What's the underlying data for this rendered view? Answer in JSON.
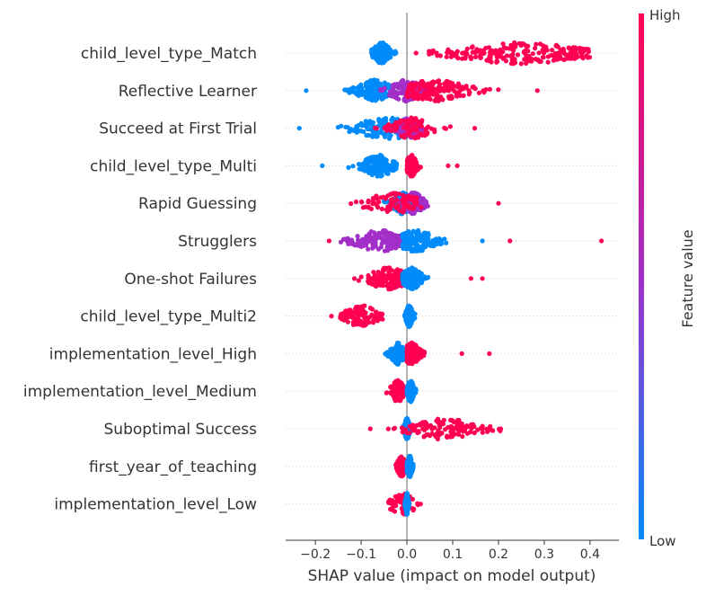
{
  "chart_data": {
    "type": "scatter",
    "subtype": "shap-beeswarm",
    "title": "",
    "xlabel": "SHAP value (impact on model output)",
    "ylabel": "",
    "xlim": [
      -0.265,
      0.463
    ],
    "x_ticks": [
      {
        "value": -0.2,
        "label": "−0.2"
      },
      {
        "value": -0.1,
        "label": "−0.1"
      },
      {
        "value": 0.0,
        "label": "0.0"
      },
      {
        "value": 0.1,
        "label": "0.1"
      },
      {
        "value": 0.2,
        "label": "0.2"
      },
      {
        "value": 0.3,
        "label": "0.3"
      },
      {
        "value": 0.4,
        "label": "0.4"
      }
    ],
    "zero_line": 0,
    "grid": "dotted horizontal row guides",
    "features": [
      {
        "label": "child_level_type_Match",
        "groups": [
          {
            "color": "#008bfb",
            "min": -0.09,
            "max": -0.02,
            "center": -0.055,
            "spread": 0.012,
            "count": 180
          },
          {
            "color": "#ff0052",
            "min": 0.04,
            "max": 0.4,
            "center": 0.25,
            "spread": 0.1,
            "count": 230
          }
        ],
        "outliers": [
          {
            "x": 0.02,
            "color": "#ff0052"
          }
        ]
      },
      {
        "label": "Reflective Learner",
        "groups": [
          {
            "color": "#008bfb",
            "min": -0.2,
            "max": -0.02,
            "center": -0.07,
            "spread": 0.025,
            "count": 170
          },
          {
            "color": "#a22fc8",
            "min": -0.06,
            "max": 0.05,
            "center": 0.0,
            "spread": 0.025,
            "count": 120
          },
          {
            "color": "#ff0052",
            "min": 0.0,
            "max": 0.28,
            "center": 0.06,
            "spread": 0.05,
            "count": 150
          }
        ],
        "outliers": [
          {
            "x": -0.22,
            "color": "#008bfb"
          },
          {
            "x": 0.285,
            "color": "#ff0052"
          }
        ]
      },
      {
        "label": "Succeed at First Trial",
        "groups": [
          {
            "color": "#008bfb",
            "min": -0.22,
            "max": 0.0,
            "center": -0.04,
            "spread": 0.05,
            "count": 150
          },
          {
            "color": "#a22fc8",
            "min": -0.03,
            "max": 0.04,
            "center": 0.005,
            "spread": 0.018,
            "count": 110
          },
          {
            "color": "#ff0052",
            "min": -0.1,
            "max": 0.15,
            "center": 0.01,
            "spread": 0.03,
            "count": 80
          }
        ],
        "outliers": [
          {
            "x": -0.235,
            "color": "#008bfb"
          },
          {
            "x": 0.148,
            "color": "#ff0052"
          }
        ]
      },
      {
        "label": "child_level_type_Multi",
        "groups": [
          {
            "color": "#008bfb",
            "min": -0.15,
            "max": -0.02,
            "center": -0.06,
            "spread": 0.025,
            "count": 160
          },
          {
            "color": "#ff0052",
            "min": 0.0,
            "max": 0.03,
            "center": 0.01,
            "spread": 0.008,
            "count": 150
          }
        ],
        "outliers": [
          {
            "x": -0.185,
            "color": "#008bfb"
          },
          {
            "x": 0.11,
            "color": "#ff0052"
          },
          {
            "x": 0.09,
            "color": "#ff0052"
          }
        ]
      },
      {
        "label": "Rapid Guessing",
        "groups": [
          {
            "color": "#008bfb",
            "min": -0.06,
            "max": 0.02,
            "center": -0.01,
            "spread": 0.015,
            "count": 100
          },
          {
            "color": "#a22fc8",
            "min": -0.02,
            "max": 0.06,
            "center": 0.015,
            "spread": 0.015,
            "count": 120
          },
          {
            "color": "#ff0052",
            "min": -0.15,
            "max": 0.13,
            "center": -0.03,
            "spread": 0.04,
            "count": 80
          }
        ],
        "outliers": [
          {
            "x": 0.2,
            "color": "#ff0052"
          }
        ]
      },
      {
        "label": "Strugglers",
        "groups": [
          {
            "color": "#a22fc8",
            "min": -0.15,
            "max": -0.01,
            "center": -0.06,
            "spread": 0.035,
            "count": 140
          },
          {
            "color": "#008bfb",
            "min": -0.01,
            "max": 0.09,
            "center": 0.02,
            "spread": 0.03,
            "count": 160
          }
        ],
        "outliers": [
          {
            "x": -0.17,
            "color": "#ff0052"
          },
          {
            "x": 0.165,
            "color": "#008bfb"
          },
          {
            "x": 0.225,
            "color": "#ff0052"
          },
          {
            "x": 0.425,
            "color": "#ff0052"
          }
        ]
      },
      {
        "label": "One-shot Failures",
        "groups": [
          {
            "color": "#ff0052",
            "min": -0.12,
            "max": -0.01,
            "center": -0.04,
            "spread": 0.03,
            "count": 140
          },
          {
            "color": "#008bfb",
            "min": -0.01,
            "max": 0.07,
            "center": 0.01,
            "spread": 0.015,
            "count": 160
          }
        ],
        "outliers": [
          {
            "x": 0.165,
            "color": "#ff0052"
          },
          {
            "x": 0.14,
            "color": "#ff0052"
          }
        ]
      },
      {
        "label": "child_level_type_Multi2",
        "groups": [
          {
            "color": "#ff0052",
            "min": -0.15,
            "max": -0.05,
            "center": -0.1,
            "spread": 0.025,
            "count": 110
          },
          {
            "color": "#008bfb",
            "min": -0.005,
            "max": 0.02,
            "center": 0.005,
            "spread": 0.005,
            "count": 200
          }
        ],
        "outliers": [
          {
            "x": -0.165,
            "color": "#ff0052"
          }
        ]
      },
      {
        "label": "implementation_level_High",
        "groups": [
          {
            "color": "#008bfb",
            "min": -0.05,
            "max": -0.005,
            "center": -0.02,
            "spread": 0.01,
            "count": 100
          },
          {
            "color": "#ff0052",
            "min": 0.0,
            "max": 0.06,
            "center": 0.01,
            "spread": 0.012,
            "count": 140
          }
        ],
        "outliers": [
          {
            "x": 0.18,
            "color": "#ff0052"
          },
          {
            "x": 0.12,
            "color": "#ff0052"
          }
        ]
      },
      {
        "label": "implementation_level_Medium",
        "groups": [
          {
            "color": "#ff0052",
            "min": -0.045,
            "max": -0.005,
            "center": -0.02,
            "spread": 0.01,
            "count": 120
          },
          {
            "color": "#008bfb",
            "min": 0.0,
            "max": 0.02,
            "center": 0.008,
            "spread": 0.005,
            "count": 150
          }
        ]
      },
      {
        "label": "Suboptimal Success",
        "groups": [
          {
            "color": "#008bfb",
            "min": -0.01,
            "max": 0.01,
            "center": 0.0,
            "spread": 0.004,
            "count": 200
          },
          {
            "color": "#ff0052",
            "min": -0.07,
            "max": 0.21,
            "center": 0.08,
            "spread": 0.05,
            "count": 120
          }
        ],
        "outliers": [
          {
            "x": -0.08,
            "color": "#ff0052"
          },
          {
            "x": 0.205,
            "color": "#ff0052"
          }
        ]
      },
      {
        "label": "first_year_of_teaching",
        "groups": [
          {
            "color": "#ff0052",
            "min": -0.025,
            "max": -0.002,
            "center": -0.012,
            "spread": 0.006,
            "count": 130
          },
          {
            "color": "#008bfb",
            "min": 0.0,
            "max": 0.015,
            "center": 0.006,
            "spread": 0.004,
            "count": 140
          }
        ]
      },
      {
        "label": "implementation_level_Low",
        "groups": [
          {
            "color": "#ff0052",
            "min": -0.045,
            "max": 0.025,
            "center": -0.01,
            "spread": 0.02,
            "count": 70
          },
          {
            "color": "#008bfb",
            "min": -0.005,
            "max": 0.005,
            "center": 0.0,
            "spread": 0.002,
            "count": 200
          }
        ],
        "outliers": [
          {
            "x": 0.03,
            "color": "#ff0052"
          }
        ]
      }
    ],
    "colorbar": {
      "title": "Feature value",
      "high_label": "High",
      "low_label": "Low",
      "low_color": "#008bfb",
      "mid_color": "#a22fc8",
      "high_color": "#ff0052"
    },
    "axis_color": "#333333",
    "zero_line_color": "#999999"
  }
}
